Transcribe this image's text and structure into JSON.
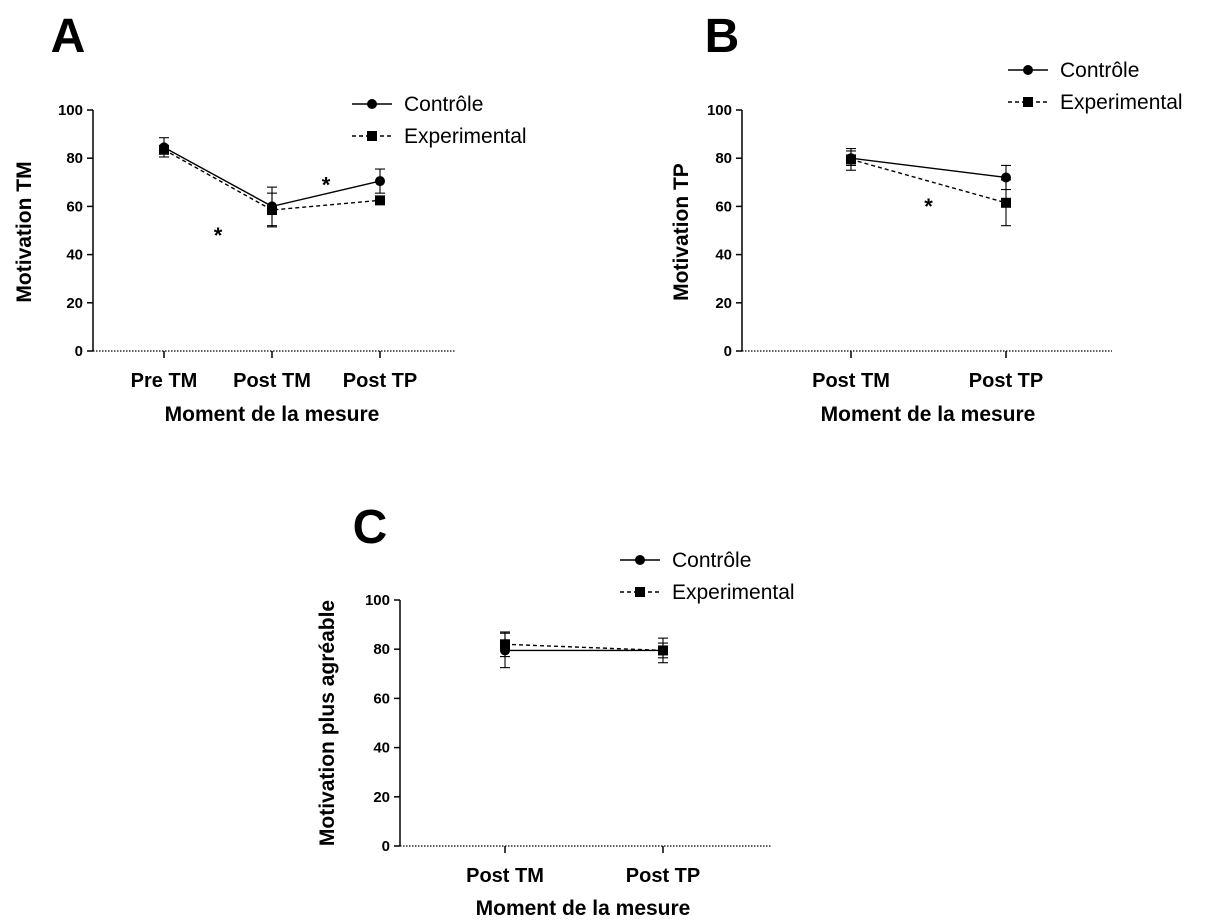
{
  "chart_data": [
    {
      "type": "line",
      "panel": "A",
      "categories": [
        "Pre TM",
        "Post TM",
        "Post TP"
      ],
      "xlabel": "Moment de la mesure",
      "ylabel": "Motivation TM",
      "ylim": [
        0,
        100
      ],
      "yticks": [
        "0",
        "20",
        "40",
        "60",
        "80",
        "100"
      ],
      "legend_position": "top-right",
      "series": [
        {
          "name": "Contrôle",
          "marker": "circle",
          "line": "solid",
          "values": [
            84.5,
            60,
            70.5
          ],
          "err": [
            4,
            8,
            5
          ]
        },
        {
          "name": "Experimental",
          "marker": "square",
          "line": "dashed",
          "values": [
            83.5,
            58.5,
            62.5
          ],
          "err": [
            0,
            7,
            0
          ]
        }
      ],
      "annotations": [
        {
          "text": "*",
          "between": [
            0,
            1
          ],
          "y": 49
        },
        {
          "text": "*",
          "between": [
            1,
            2
          ],
          "y": 70
        }
      ]
    },
    {
      "type": "line",
      "panel": "B",
      "categories": [
        "Post TM",
        "Post TP"
      ],
      "xlabel": "Moment de la mesure",
      "ylabel": "Motivation TP",
      "ylim": [
        0,
        100
      ],
      "yticks": [
        "0",
        "20",
        "40",
        "60",
        "80",
        "100"
      ],
      "legend_position": "top-right",
      "series": [
        {
          "name": "Contrôle",
          "marker": "circle",
          "line": "solid",
          "values": [
            80,
            72
          ],
          "err": [
            3,
            5
          ]
        },
        {
          "name": "Experimental",
          "marker": "square",
          "line": "dashed",
          "values": [
            79.5,
            61.5
          ],
          "err": [
            4.5,
            9.5
          ]
        }
      ],
      "annotations": [
        {
          "text": "*",
          "between": [
            0,
            1
          ],
          "y": 61
        }
      ]
    },
    {
      "type": "line",
      "panel": "C",
      "categories": [
        "Post TM",
        "Post TP"
      ],
      "xlabel": "Moment de la mesure",
      "ylabel": "Motivation plus agréable",
      "ylim": [
        0,
        100
      ],
      "yticks": [
        "0",
        "20",
        "40",
        "60",
        "80",
        "100"
      ],
      "legend_position": "top-right",
      "series": [
        {
          "name": "Contrôle",
          "marker": "circle",
          "line": "solid",
          "values": [
            79.5,
            79.5
          ],
          "err": [
            7,
            3
          ]
        },
        {
          "name": "Experimental",
          "marker": "square",
          "line": "dashed",
          "values": [
            82,
            79.5
          ],
          "err": [
            5,
            5
          ]
        }
      ],
      "annotations": []
    }
  ]
}
